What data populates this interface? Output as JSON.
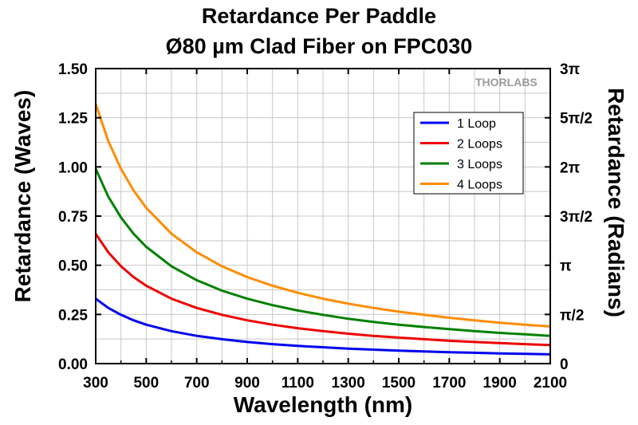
{
  "chart_data": {
    "type": "line",
    "title": "Retardance Per Paddle",
    "subtitle": "Ø80 µm Clad Fiber on FPC030",
    "xlabel": "Wavelength (nm)",
    "ylabel": "Retardance (Waves)",
    "y2label": "Retardance (Radians)",
    "xlim": [
      300,
      2100
    ],
    "ylim": [
      0,
      1.5
    ],
    "xticks": [
      "300",
      "500",
      "700",
      "900",
      "1100",
      "1300",
      "1500",
      "1700",
      "1900",
      "2100"
    ],
    "xtick_values": [
      300,
      500,
      700,
      900,
      1100,
      1300,
      1500,
      1700,
      1900,
      2100
    ],
    "yticks": [
      "0.00",
      "0.25",
      "0.50",
      "0.75",
      "1.00",
      "1.25",
      "1.50"
    ],
    "ytick_values": [
      0,
      0.25,
      0.5,
      0.75,
      1.0,
      1.25,
      1.5
    ],
    "y2ticks": [
      "0",
      "π/2",
      "π",
      "3π/2",
      "2π",
      "5π/2",
      "3π"
    ],
    "grid": true,
    "legend_position": "top-right",
    "logo_text": "THORLABS",
    "x": [
      300,
      350,
      400,
      450,
      500,
      600,
      700,
      800,
      900,
      1000,
      1100,
      1200,
      1300,
      1400,
      1500,
      1600,
      1700,
      1800,
      1900,
      2000,
      2100
    ],
    "series": [
      {
        "name": "1 Loop",
        "color": "#0000ee",
        "values": [
          0.33,
          0.283,
          0.248,
          0.22,
          0.198,
          0.165,
          0.141,
          0.124,
          0.11,
          0.099,
          0.09,
          0.083,
          0.076,
          0.071,
          0.066,
          0.062,
          0.058,
          0.055,
          0.052,
          0.05,
          0.047
        ]
      },
      {
        "name": "2 Loops",
        "color": "#ee0000",
        "values": [
          0.66,
          0.566,
          0.495,
          0.44,
          0.396,
          0.33,
          0.283,
          0.248,
          0.22,
          0.198,
          0.18,
          0.165,
          0.152,
          0.141,
          0.132,
          0.124,
          0.116,
          0.11,
          0.104,
          0.099,
          0.094
        ]
      },
      {
        "name": "3 Loops",
        "color": "#008000",
        "values": [
          0.99,
          0.849,
          0.743,
          0.66,
          0.594,
          0.495,
          0.424,
          0.371,
          0.33,
          0.297,
          0.27,
          0.248,
          0.228,
          0.212,
          0.198,
          0.186,
          0.175,
          0.165,
          0.156,
          0.149,
          0.141
        ]
      },
      {
        "name": "4 Loops",
        "color": "#ff8c00",
        "values": [
          1.32,
          1.131,
          0.99,
          0.88,
          0.792,
          0.66,
          0.566,
          0.495,
          0.44,
          0.396,
          0.36,
          0.33,
          0.305,
          0.283,
          0.264,
          0.248,
          0.233,
          0.22,
          0.208,
          0.198,
          0.189
        ]
      }
    ]
  }
}
